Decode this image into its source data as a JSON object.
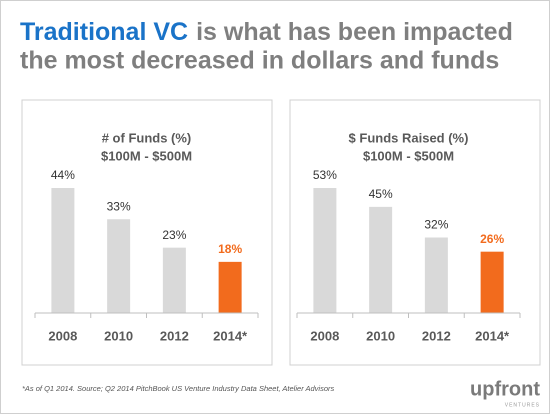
{
  "title": {
    "highlight": "Traditional VC",
    "line1_rest": "is what has been impacted",
    "line2": "the most decreased in dollars and funds"
  },
  "chart_data": [
    {
      "type": "bar",
      "title": "# of Funds (%)",
      "subtitle": "$100M - $500M",
      "categories": [
        "2008",
        "2010",
        "2012",
        "2014*"
      ],
      "values": [
        44,
        33,
        23,
        18
      ],
      "value_labels": [
        "44%",
        "33%",
        "23%",
        "18%"
      ],
      "colors": [
        "#d9d9d9",
        "#d9d9d9",
        "#d9d9d9",
        "#f26b1d"
      ]
    },
    {
      "type": "bar",
      "title": "$ Funds Raised (%)",
      "subtitle": "$100M - $500M",
      "categories": [
        "2008",
        "2010",
        "2012",
        "2014*"
      ],
      "values": [
        53,
        45,
        32,
        26
      ],
      "value_labels": [
        "53%",
        "45%",
        "32%",
        "26%"
      ],
      "colors": [
        "#d9d9d9",
        "#d9d9d9",
        "#d9d9d9",
        "#f26b1d"
      ]
    }
  ],
  "footnote": "*As of Q1 2014.  Source; Q2 2014 PitchBook US Venture Industry Data Sheet, Atelier Advisors",
  "logo": {
    "name": "upfront",
    "tagline": "VENTURES"
  }
}
